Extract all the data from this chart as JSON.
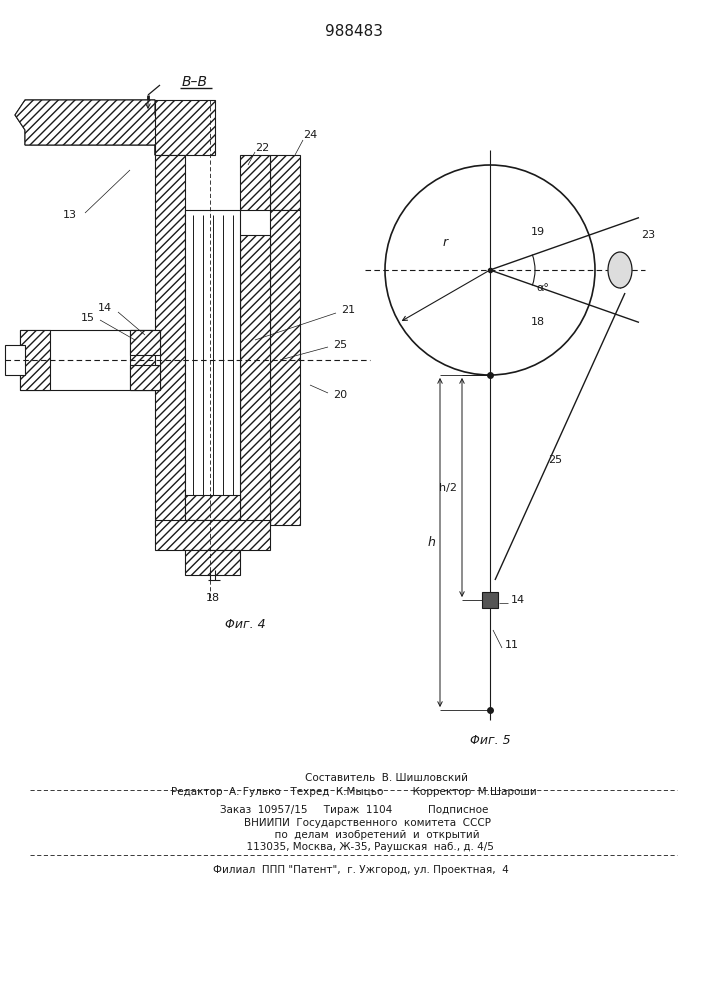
{
  "title": "988483",
  "bg_color": "#ffffff",
  "line_color": "#1a1a1a",
  "footer_line1": "                    Составитель  В. Шишловский",
  "footer_line2": "Редактор  А. Гулько   Техред  К.Мыцьо         Корректор  М.Шароши",
  "footer_line3": "Заказ  10957/15     Тираж  1104           Подписное",
  "footer_line4": "        ВНИИПИ  Государственного  комитета  СССР",
  "footer_line5": "              по  делам  изобретений  и  открытий",
  "footer_line6": "          113035, Москва, Ж-35, Раушская  наб., д. 4/5",
  "footer_line7": "    Филиал  ППП \"Патент\",  г. Ужгород, ул. Проектная,  4",
  "fig4_label": "Φиг. 4",
  "fig5_label": "Φиг. 5"
}
